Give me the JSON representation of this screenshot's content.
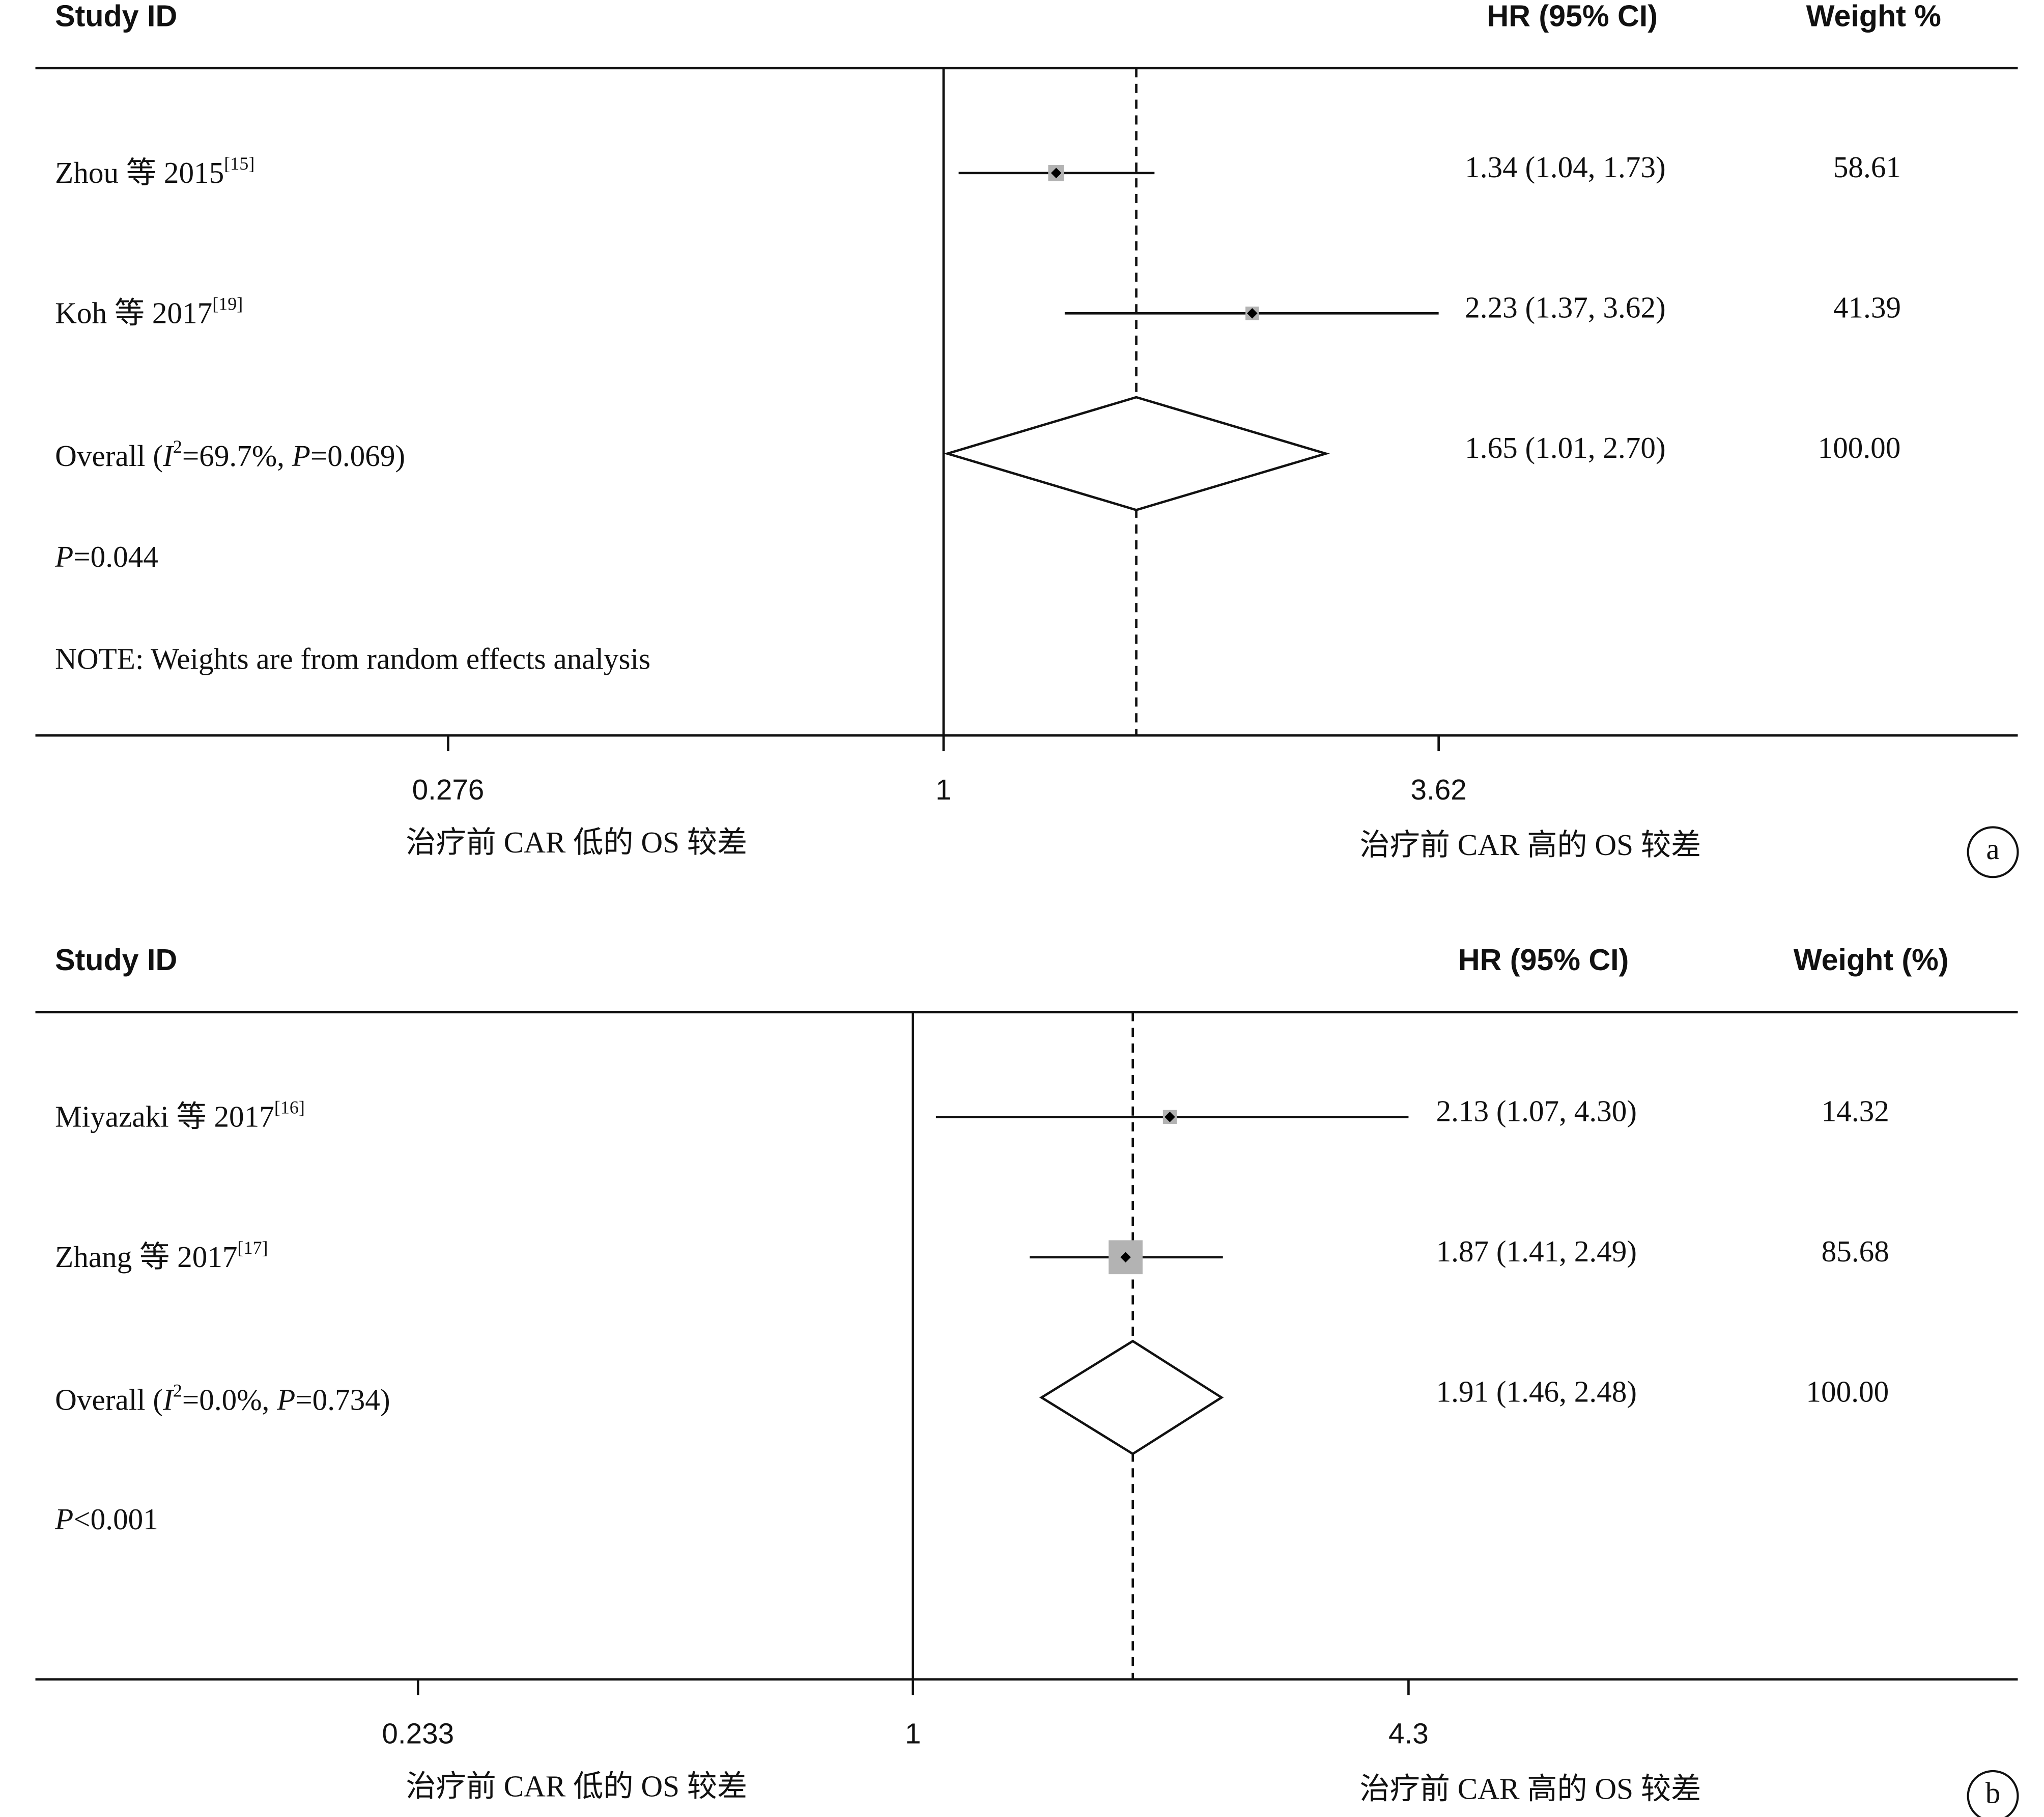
{
  "chart_data": [
    {
      "type": "forest",
      "panel": "a",
      "x_log": true,
      "xlim": [
        0.276,
        3.62
      ],
      "xticks": [
        0.276,
        1,
        3.62
      ],
      "headers": [
        "Study ID",
        "HR (95% CI)",
        "Weight %"
      ],
      "studies": [
        {
          "name": "Zhou 等 2015",
          "ref": "[15]",
          "hr": 1.34,
          "lower": 1.04,
          "upper": 1.73,
          "ci_label": "1.34 (1.04, 1.73)",
          "weight": 58.61
        },
        {
          "name": "Koh 等 2017",
          "ref": "[19]",
          "hr": 2.23,
          "lower": 1.37,
          "upper": 3.62,
          "ci_label": "2.23 (1.37, 3.62)",
          "weight": 41.39
        }
      ],
      "overall": {
        "label": [
          "Overall  (",
          "I",
          "2",
          "=69.7%, ",
          "P",
          "=0.069)"
        ],
        "hr": 1.65,
        "lower": 1.01,
        "upper": 2.7,
        "ci_label": "1.65 (1.01, 2.70)",
        "weight": 100,
        "weight_label": "100.00"
      },
      "p_value": [
        "P",
        "=0.044"
      ],
      "note": "NOTE: Weights are from random effects analysis",
      "xlabels": [
        "治疗前 CAR 低的 OS 较差",
        "治疗前 CAR 高的 OS  较差"
      ]
    },
    {
      "type": "forest",
      "panel": "b",
      "x_log": true,
      "xlim": [
        0.233,
        4.3
      ],
      "xticks": [
        0.233,
        1,
        4.3
      ],
      "headers": [
        "Study ID",
        "HR (95% CI)",
        "Weight (%)"
      ],
      "studies": [
        {
          "name": "Miyazaki 等 2017",
          "ref": "[16]",
          "hr": 2.13,
          "lower": 1.07,
          "upper": 4.3,
          "ci_label": "2.13 (1.07, 4.30)",
          "weight": 14.32
        },
        {
          "name": "Zhang 等 2017",
          "ref": "[17]",
          "hr": 1.87,
          "lower": 1.41,
          "upper": 2.49,
          "ci_label": "1.87 (1.41, 2.49)",
          "weight": 85.68
        }
      ],
      "overall": {
        "label": [
          "Overall  (",
          "I",
          "2",
          "=0.0%, ",
          "P",
          "=0.734)"
        ],
        "hr": 1.91,
        "lower": 1.46,
        "upper": 2.48,
        "ci_label": "1.91 (1.46, 2.48)",
        "weight": 100,
        "weight_label": "100.00"
      },
      "p_value": [
        "P",
        "<0.001"
      ],
      "xlabels": [
        "治疗前 CAR  低的 OS 较差",
        "治疗前 CAR 高的 OS  较差"
      ]
    }
  ]
}
